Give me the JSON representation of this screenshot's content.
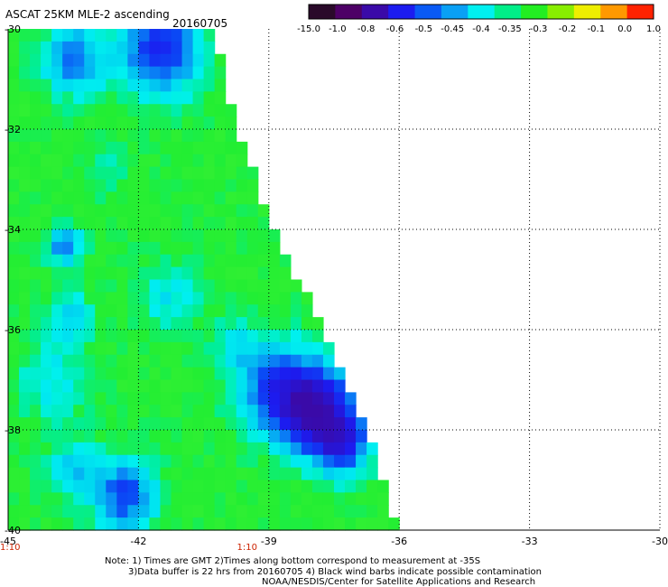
{
  "title": "ASCAT 25KM MLE-2 ascending",
  "date": "20160705",
  "colorbar": {
    "labels": [
      "-15.0",
      "-1.0",
      "-0.8",
      "-0.6",
      "-0.5",
      "-0.45",
      "-0.4",
      "-0.35",
      "-0.3",
      "-0.2",
      "-0.1",
      "0.0",
      "1.0"
    ],
    "colors": [
      "#2a0a2a",
      "#4d0066",
      "#3a0aa8",
      "#1c1cf0",
      "#0a5af5",
      "#0aa0f5",
      "#00f0f0",
      "#00ee88",
      "#22ee22",
      "#88ee00",
      "#eeee00",
      "#ff9900",
      "#ff2200"
    ]
  },
  "notes": {
    "line1": "Note: 1) Times are GMT 2)Times along bottom correspond to measurement at -35S",
    "line2": "3)Data buffer is 22 hrs from 20160705 4) Black wind barbs indicate possible contamination",
    "line3": "NOAA/NESDIS/Center for Satellite Applications and Research"
  },
  "time_labels": [
    "1:10",
    "1:10"
  ],
  "chart_data": {
    "type": "heatmap",
    "title": "ASCAT 25KM MLE-2 ascending",
    "xlim": [
      -45,
      -30
    ],
    "ylim": [
      -40,
      -30
    ],
    "x_ticks": [
      "-45",
      "-42",
      "-39",
      "-36",
      "-33",
      "-30"
    ],
    "y_ticks": [
      "-30",
      "-32",
      "-34",
      "-36",
      "-38",
      "-40"
    ],
    "grid": true,
    "swath_edge_right": [
      {
        "lat": -30.0,
        "lon": -40.3
      },
      {
        "lat": -32.0,
        "lon": -39.7
      },
      {
        "lat": -34.0,
        "lon": -38.9
      },
      {
        "lat": -36.0,
        "lon": -37.7
      },
      {
        "lat": -38.0,
        "lon": -36.7
      },
      {
        "lat": -40.0,
        "lon": -36.0
      }
    ],
    "dominant_values": "-0.3 to -0.45 (green to cyan)",
    "low_value_regions": [
      {
        "lat": -30.5,
        "lon": -41.0,
        "value": -0.6
      },
      {
        "lat": -37.5,
        "lon": -38.0,
        "value": -0.8
      },
      {
        "lat": -39.5,
        "lon": -42.5,
        "value": -0.6
      }
    ]
  }
}
